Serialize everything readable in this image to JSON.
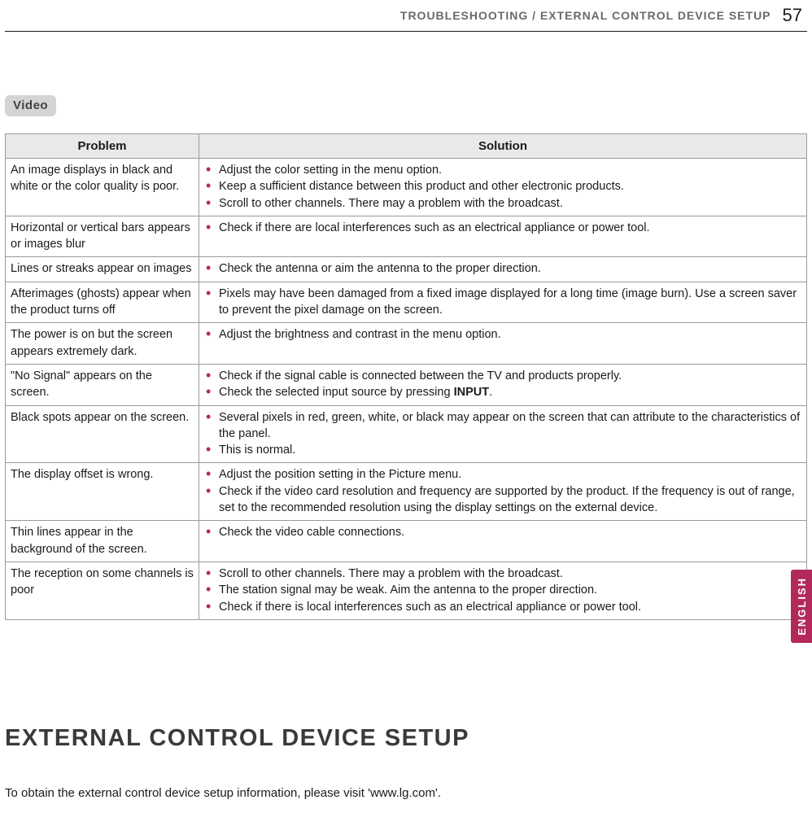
{
  "header": {
    "breadcrumb": "TROUBLESHOOTING / EXTERNAL CONTROL DEVICE SETUP",
    "page_number": "57"
  },
  "section_badge": "Video",
  "table": {
    "columns": [
      "Problem",
      "Solution"
    ],
    "rows": [
      {
        "problem": "An image displays in black and white or the color quality is poor.",
        "solutions": [
          "Adjust the color setting in the menu option.",
          "Keep a sufficient distance between this product and other electronic products.",
          "Scroll to other channels. There may a problem with the broadcast."
        ]
      },
      {
        "problem": "Horizontal or vertical bars appears or images blur",
        "solutions": [
          "Check if there are local interferences such as an electrical appliance or power tool."
        ]
      },
      {
        "problem": "Lines or streaks appear on images",
        "solutions": [
          "Check the antenna or aim the antenna to the proper direction."
        ]
      },
      {
        "problem": "Afterimages (ghosts) appear when the product turns off",
        "solutions": [
          "Pixels may have been damaged from a fixed image displayed for a long time (image burn). Use a screen saver to prevent the pixel damage on the screen."
        ]
      },
      {
        "problem": "The power is on but the screen appears extremely dark.",
        "solutions": [
          "Adjust the brightness and contrast in the menu option."
        ]
      },
      {
        "problem": "\"No Signal\" appears on the screen.",
        "solutions": [
          "Check if the signal cable is connected between the TV and products properly.",
          "Check the selected input source by pressing <b>INPUT</b>."
        ]
      },
      {
        "problem": "Black spots appear on the screen.",
        "solutions": [
          "Several pixels in red, green, white, or black may appear on the screen that can attribute to the characteristics of the panel.",
          "This is normal."
        ]
      },
      {
        "problem": "The display offset is wrong.",
        "solutions": [
          "Adjust the position setting in the Picture menu.",
          "Check if the video card resolution and frequency are supported by the product. If the frequency is out of range, set to the recommended resolution using the display settings on the external device."
        ]
      },
      {
        "problem": "Thin lines appear in the background of the screen.",
        "solutions": [
          "Check the video cable connections."
        ]
      },
      {
        "problem": "The reception on some channels is poor",
        "solutions": [
          "Scroll to other channels. There may a problem with the broadcast.",
          "The station signal may be weak. Aim the antenna to the proper direction.",
          "Check if there is local interferences such as an electrical appliance or power tool."
        ]
      }
    ]
  },
  "language_tab": "ENGLISH",
  "main_heading": "EXTERNAL CONTROL DEVICE SETUP",
  "footer_text": "To obtain the external control device setup information, please visit 'www.lg.com'.",
  "colors": {
    "accent": "#b3295c",
    "badge_bg": "#d4d4d4",
    "header_bg": "#e9e9e9",
    "border": "#9a9a9a",
    "text": "#1a1a1a",
    "header_text": "#6a6a6a"
  }
}
